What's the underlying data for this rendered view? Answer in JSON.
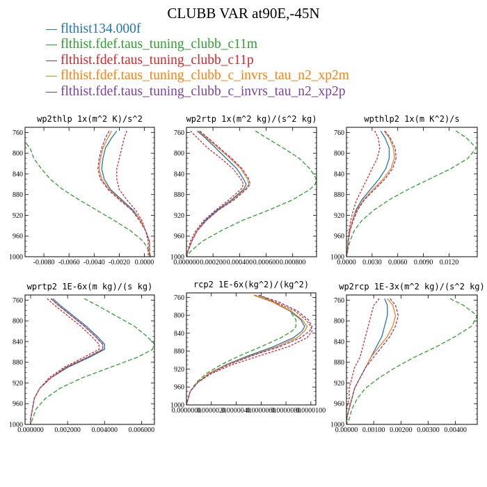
{
  "figure": {
    "title": "CLUBB VAR at90E,-45N",
    "legend": [
      {
        "label": "flthist134.000f",
        "color": "#1f77b4"
      },
      {
        "label": "flthist.fdef.taus_tuning_clubb_c11m",
        "color": "#2ca02c"
      },
      {
        "label": "flthist.fdef.taus_tuning_clubb_c11p",
        "color": "#d62728"
      },
      {
        "label": "flthist.fdef.taus_tuning_clubb_c_invrs_tau_n2_xp2m",
        "color": "#ff7f0e"
      },
      {
        "label": "flthist.fdef.taus_tuning_clubb_c_invrs_tau_n2_xp2p",
        "color": "#7b3f9e"
      }
    ]
  },
  "chart_data": [
    {
      "type": "line",
      "title": "wp2thlp  1x(m^2 K)/s^2",
      "xlim": [
        -0.0095,
        0.0008
      ],
      "ylim": [
        1000,
        750
      ],
      "xticks": [
        -0.008,
        -0.006,
        -0.004,
        -0.002,
        0.0
      ],
      "xtick_labels": [
        "-0.0080",
        "-0.0060",
        "-0.0040",
        "-0.0020",
        "0.0000"
      ],
      "yticks": [
        760,
        800,
        840,
        880,
        920,
        960,
        1000
      ],
      "levels": [
        757,
        770,
        790,
        810,
        830,
        850,
        870,
        890,
        910,
        930,
        950,
        970,
        990,
        1000
      ],
      "series": [
        {
          "values": [
            -0.0022,
            -0.0026,
            -0.0031,
            -0.0033,
            -0.0034,
            -0.0032,
            -0.0027,
            -0.0018,
            -0.0009,
            -0.0003,
            0.0001,
            0.0004,
            0.0004,
            0.0004
          ]
        },
        {
          "values": [
            -0.0105,
            -0.0098,
            -0.0091,
            -0.0088,
            -0.0082,
            -0.0075,
            -0.0065,
            -0.0052,
            -0.0038,
            -0.0024,
            -0.0011,
            -0.0001,
            0.0004,
            0.0005
          ]
        },
        {
          "values": [
            -0.0014,
            -0.0016,
            -0.0018,
            -0.002,
            -0.0022,
            -0.0022,
            -0.002,
            -0.0014,
            -0.0007,
            -0.0002,
            0.0001,
            0.0003,
            0.0003,
            0.0003
          ]
        },
        {
          "values": [
            -0.0026,
            -0.0029,
            -0.0033,
            -0.0035,
            -0.0036,
            -0.0034,
            -0.0028,
            -0.0019,
            -0.001,
            -0.0003,
            0.0001,
            0.0004,
            0.0004,
            0.0004
          ]
        },
        {
          "values": [
            -0.0028,
            -0.0031,
            -0.0034,
            -0.0036,
            -0.0037,
            -0.0035,
            -0.0029,
            -0.002,
            -0.001,
            -0.0004,
            0.0001,
            0.0004,
            0.0004,
            0.0004
          ]
        }
      ]
    },
    {
      "type": "line",
      "title": "wp2rtp  1x(m^2 kg)/(s^2 kg)",
      "xlim": [
        0.0,
        0.00098
      ],
      "ylim": [
        1000,
        750
      ],
      "xticks": [
        0.0,
        0.0002,
        0.0004,
        0.0006,
        0.0008
      ],
      "xtick_labels": [
        "0.000000",
        "0.000200",
        "0.000400",
        "0.000600",
        "0.000800"
      ],
      "yticks": [
        760,
        800,
        840,
        880,
        920,
        960,
        1000
      ],
      "levels": [
        757,
        770,
        790,
        810,
        830,
        850,
        860,
        870,
        890,
        910,
        930,
        950,
        970,
        990,
        1000
      ],
      "series": [
        {
          "values": [
            8e-05,
            0.00014,
            0.00022,
            0.0003,
            0.00038,
            0.00043,
            0.00045,
            0.00043,
            0.00034,
            0.00023,
            0.00014,
            8e-05,
            4e-05,
            1e-05,
            0.0
          ]
        },
        {
          "values": [
            0.00052,
            0.0006,
            0.00073,
            0.00085,
            0.00093,
            0.00098,
            0.00097,
            0.00093,
            0.0008,
            0.00062,
            0.00042,
            0.00026,
            0.00012,
            3e-05,
            0.0
          ]
        },
        {
          "values": [
            3e-05,
            8e-05,
            0.00016,
            0.00026,
            0.00035,
            0.00041,
            0.00043,
            0.00041,
            0.00032,
            0.00022,
            0.00013,
            7e-05,
            3e-05,
            1e-05,
            0.0
          ]
        },
        {
          "values": [
            9e-05,
            0.00015,
            0.00024,
            0.00033,
            0.00041,
            0.00046,
            0.00047,
            0.00044,
            0.00035,
            0.00024,
            0.00015,
            8e-05,
            4e-05,
            1e-05,
            0.0
          ]
        },
        {
          "values": [
            0.0001,
            0.00016,
            0.00025,
            0.00034,
            0.00042,
            0.00047,
            0.00048,
            0.00045,
            0.00036,
            0.00024,
            0.00015,
            8e-05,
            4e-05,
            1e-05,
            0.0
          ]
        }
      ]
    },
    {
      "type": "line",
      "title": "wpthlp2  1x(m K^2)/s",
      "xlim": [
        0.0,
        0.0153
      ],
      "ylim": [
        1000,
        750
      ],
      "xticks": [
        0.0,
        0.003,
        0.006,
        0.009,
        0.012
      ],
      "xtick_labels": [
        "0.0000",
        "0.0030",
        "0.0060",
        "0.0090",
        "0.0120"
      ],
      "yticks": [
        760,
        800,
        840,
        880,
        920,
        960,
        1000
      ],
      "levels": [
        757,
        770,
        790,
        810,
        830,
        850,
        870,
        890,
        910,
        930,
        950,
        970,
        990,
        1000
      ],
      "series": [
        {
          "values": [
            0.004,
            0.0045,
            0.005,
            0.005,
            0.0046,
            0.0038,
            0.0028,
            0.0018,
            0.0011,
            0.0007,
            0.0004,
            0.0002,
            0.0001,
            0.0
          ]
        },
        {
          "values": [
            0.0128,
            0.014,
            0.0152,
            0.0142,
            0.0122,
            0.0097,
            0.0072,
            0.005,
            0.0032,
            0.0018,
            0.0009,
            0.0004,
            0.0001,
            0.0
          ]
        },
        {
          "values": [
            0.0033,
            0.0037,
            0.0039,
            0.0036,
            0.003,
            0.0024,
            0.0018,
            0.0012,
            0.0008,
            0.0005,
            0.0003,
            0.0002,
            0.0001,
            0.0
          ]
        },
        {
          "values": [
            0.0044,
            0.005,
            0.0055,
            0.0056,
            0.0052,
            0.0043,
            0.0031,
            0.002,
            0.0012,
            0.0007,
            0.0004,
            0.0002,
            0.0001,
            0.0
          ]
        },
        {
          "values": [
            0.0045,
            0.0051,
            0.0057,
            0.0058,
            0.0054,
            0.0045,
            0.0033,
            0.0021,
            0.0013,
            0.0008,
            0.0004,
            0.0002,
            0.0001,
            0.0
          ]
        }
      ]
    },
    {
      "type": "line",
      "title": "wprtp2  1E-6x(m kg)/(s kg)",
      "xlim": [
        -0.0003,
        0.0067
      ],
      "ylim": [
        1000,
        750
      ],
      "xticks": [
        0.0,
        0.002,
        0.004,
        0.006
      ],
      "xtick_labels": [
        "0.000000",
        "0.002000",
        "0.004000",
        "0.006000"
      ],
      "yticks": [
        760,
        800,
        840,
        880,
        920,
        960,
        1000
      ],
      "levels": [
        757,
        770,
        790,
        810,
        830,
        845,
        855,
        870,
        890,
        910,
        930,
        950,
        970,
        990,
        1000
      ],
      "series": [
        {
          "values": [
            0.0012,
            0.0016,
            0.0023,
            0.003,
            0.0036,
            0.004,
            0.004,
            0.0032,
            0.002,
            0.0011,
            0.0005,
            0.0002,
            0.0001,
            0.0,
            0.0
          ]
        },
        {
          "values": [
            0.0029,
            0.0036,
            0.0046,
            0.0056,
            0.0063,
            0.0067,
            0.0066,
            0.0058,
            0.0043,
            0.0028,
            0.0016,
            0.0008,
            0.0003,
            0.0001,
            0.0
          ]
        },
        {
          "values": [
            0.0009,
            0.0013,
            0.002,
            0.0027,
            0.0033,
            0.0037,
            0.0037,
            0.0029,
            0.0018,
            0.001,
            0.0005,
            0.0002,
            0.0001,
            0.0,
            0.0
          ]
        },
        {
          "values": [
            0.0011,
            0.0015,
            0.0022,
            0.0029,
            0.0035,
            0.0039,
            0.0039,
            0.0031,
            0.0019,
            0.0011,
            0.0005,
            0.0002,
            0.0001,
            0.0,
            0.0
          ]
        },
        {
          "values": [
            0.0011,
            0.0015,
            0.0022,
            0.0029,
            0.0035,
            0.0039,
            0.0039,
            0.0031,
            0.0019,
            0.0011,
            0.0005,
            0.0002,
            0.0001,
            0.0,
            0.0
          ]
        }
      ]
    },
    {
      "type": "line",
      "title": "rcp2  1E-6x(kg^2)/(kg^2)",
      "xlim": [
        0.0,
        1.04e-05
      ],
      "ylim": [
        1000,
        750
      ],
      "xticks": [
        0.0,
        2e-06,
        4e-06,
        6e-06,
        8e-06,
        1e-05
      ],
      "xtick_labels": [
        "0.0000000",
        "0.0000020",
        "0.0000040",
        "0.0000060",
        "0.0000080",
        "0.0000100"
      ],
      "yticks": [
        760,
        800,
        840,
        880,
        920,
        960,
        1000
      ],
      "levels": [
        755,
        770,
        790,
        810,
        825,
        835,
        850,
        870,
        890,
        910,
        930,
        950,
        970,
        990,
        1000
      ],
      "series": [
        {
          "values": [
            5.4e-06,
            6.9e-06,
            8.3e-06,
            9.2e-06,
            9.5e-06,
            9.3e-06,
            8.6e-06,
            7e-06,
            5e-06,
            3.2e-06,
            1.8e-06,
            9e-07,
            3e-07,
            1e-07,
            0.0
          ]
        },
        {
          "values": [
            5.8e-06,
            7.1e-06,
            8.3e-06,
            8.8e-06,
            8.8e-06,
            8.5e-06,
            7.6e-06,
            6e-06,
            4.3e-06,
            2.8e-06,
            1.6e-06,
            8e-07,
            3e-07,
            1e-07,
            0.0
          ]
        },
        {
          "values": [
            5.5e-06,
            7.1e-06,
            8.7e-06,
            9.6e-06,
            1e-05,
            1.01e-05,
            9.7e-06,
            8.2e-06,
            5.9e-06,
            3.7e-06,
            2e-06,
            9e-07,
            3e-07,
            1e-07,
            0.0
          ]
        },
        {
          "values": [
            5.4e-06,
            6.9e-06,
            8.4e-06,
            9.3e-06,
            9.7e-06,
            9.5e-06,
            8.9e-06,
            7.3e-06,
            5.2e-06,
            3.3e-06,
            1.8e-06,
            9e-07,
            3e-07,
            1e-07,
            0.0
          ]
        },
        {
          "values": [
            5.8e-06,
            7.4e-06,
            8.9e-06,
            9.8e-06,
            1.01e-05,
            9.9e-06,
            9.2e-06,
            7.5e-06,
            5.3e-06,
            3.4e-06,
            1.9e-06,
            9e-07,
            3e-07,
            1e-07,
            0.0
          ]
        }
      ]
    },
    {
      "type": "line",
      "title": "wp2rcp  1E-3x(m^2 kg)/(s^2 kg)",
      "xlim": [
        0.0,
        0.0048
      ],
      "ylim": [
        1000,
        750
      ],
      "xticks": [
        0.0,
        0.001,
        0.002,
        0.003,
        0.004
      ],
      "xtick_labels": [
        "0.00000",
        "0.00100",
        "0.00200",
        "0.00300",
        "0.00400"
      ],
      "yticks": [
        760,
        800,
        840,
        880,
        920,
        960,
        1000
      ],
      "levels": [
        757,
        770,
        790,
        810,
        830,
        850,
        870,
        890,
        910,
        930,
        950,
        970,
        990,
        1000
      ],
      "series": [
        {
          "values": [
            0.0014,
            0.0015,
            0.0015,
            0.0014,
            0.0013,
            0.0011,
            0.0009,
            0.0007,
            0.0005,
            0.0003,
            0.0002,
            0.0001,
            0.0,
            0.0
          ]
        },
        {
          "values": [
            0.0038,
            0.0043,
            0.0048,
            0.0046,
            0.004,
            0.0033,
            0.0025,
            0.0018,
            0.0012,
            0.0007,
            0.0004,
            0.0002,
            0.0001,
            0.0
          ]
        },
        {
          "values": [
            0.0012,
            0.001,
            0.0009,
            0.0008,
            0.0007,
            0.0006,
            0.0005,
            0.0003,
            0.0002,
            0.0001,
            0.0001,
            0.0,
            0.0,
            0.0
          ]
        },
        {
          "values": [
            0.0015,
            0.0017,
            0.0018,
            0.0017,
            0.0015,
            0.0012,
            0.0009,
            0.0007,
            0.0005,
            0.0003,
            0.0002,
            0.0001,
            0.0,
            0.0
          ]
        },
        {
          "values": [
            0.0016,
            0.0018,
            0.0019,
            0.0018,
            0.0016,
            0.0013,
            0.001,
            0.0007,
            0.0005,
            0.0003,
            0.0002,
            0.0001,
            0.0,
            0.0
          ]
        }
      ]
    }
  ]
}
